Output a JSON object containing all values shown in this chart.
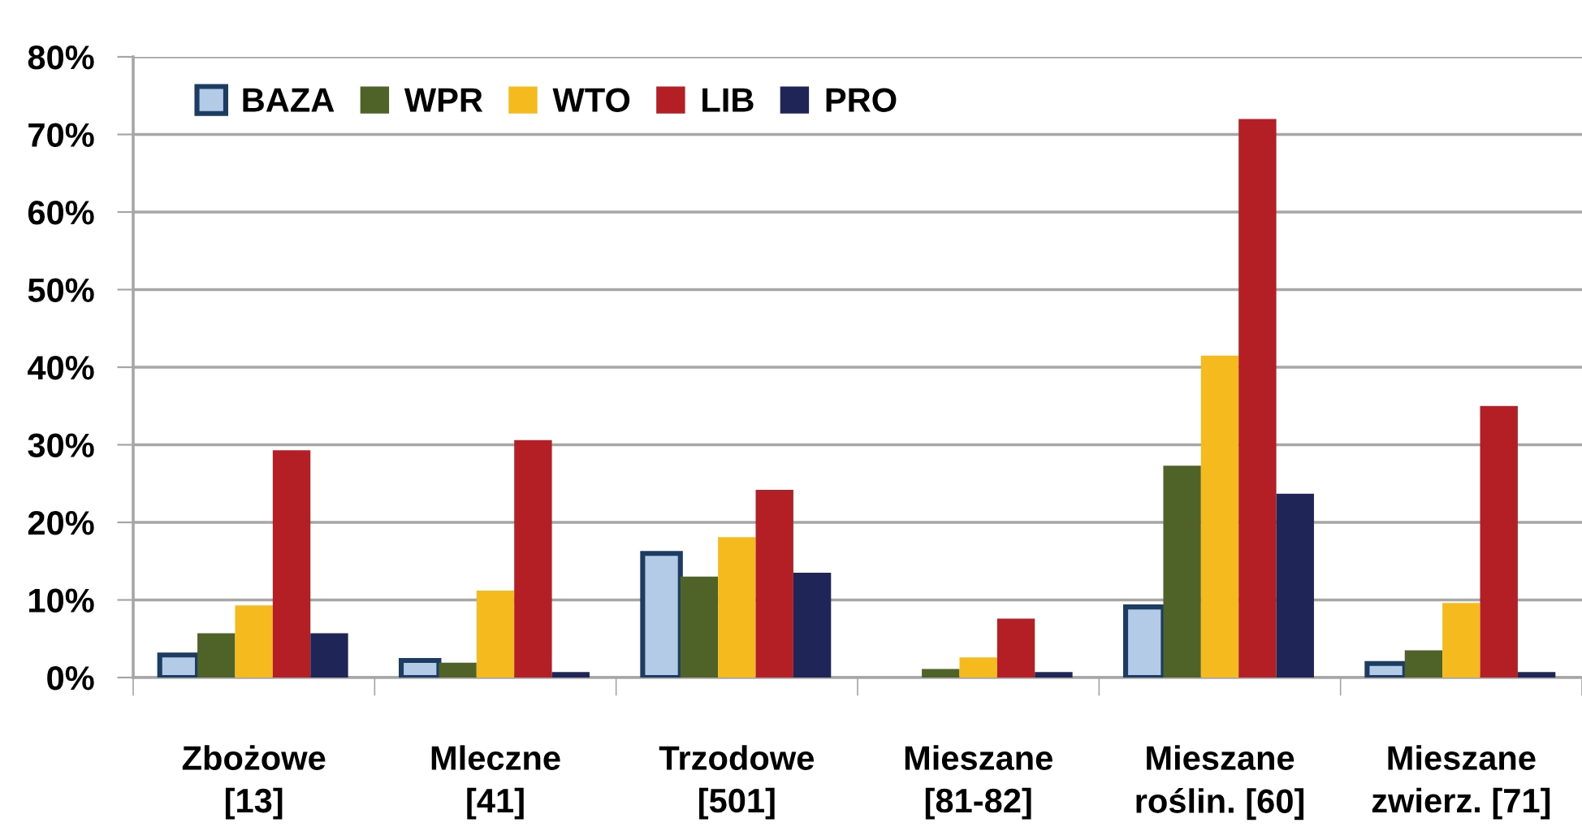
{
  "chart_data": {
    "type": "bar",
    "categories": [
      "Zbożowe\n[13]",
      "Mleczne\n[41]",
      "Trzodowe\n[501]",
      "Mieszane\n[81-82]",
      "Mieszane\nroślin. [60]",
      "Mieszane\nzwierz. [71]"
    ],
    "series": [
      {
        "name": "BAZA",
        "color": "#b4cbe8",
        "values": [
          2.9,
          2.2,
          16.0,
          null,
          9.1,
          1.8
        ]
      },
      {
        "name": "WPR",
        "color": "#4f6228",
        "values": [
          5.7,
          1.9,
          13.0,
          1.1,
          27.3,
          3.5
        ]
      },
      {
        "name": "WTO",
        "color": "#f5bb1e",
        "values": [
          9.3,
          11.2,
          18.1,
          2.6,
          41.5,
          9.6
        ]
      },
      {
        "name": "LIB",
        "color": "#b31f24",
        "values": [
          29.3,
          30.6,
          24.2,
          7.6,
          72.0,
          35.0
        ]
      },
      {
        "name": "PRO",
        "color": "#1f2557",
        "values": [
          5.7,
          0.7,
          13.5,
          0.7,
          23.7,
          0.7
        ]
      }
    ],
    "ylim": [
      0,
      80
    ],
    "yticks": [
      {
        "value": 0,
        "label": "0%"
      },
      {
        "value": 10,
        "label": "10%"
      },
      {
        "value": 20,
        "label": "20%"
      },
      {
        "value": 30,
        "label": "30%"
      },
      {
        "value": 40,
        "label": "40%"
      },
      {
        "value": 50,
        "label": "50%"
      },
      {
        "value": 60,
        "label": "60%"
      },
      {
        "value": 70,
        "label": "70%"
      },
      {
        "value": 80,
        "label": "80%"
      }
    ],
    "grid": "y",
    "legend": "top left"
  }
}
